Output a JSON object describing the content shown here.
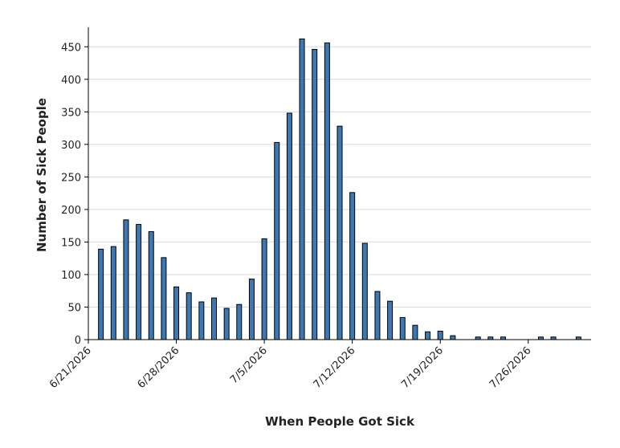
{
  "chart_data": {
    "type": "bar",
    "x_label": "When People Got Sick",
    "y_label": "Number of Sick People",
    "x": [
      "6/22/2026",
      "6/23/2026",
      "6/24/2026",
      "6/25/2026",
      "6/26/2026",
      "6/27/2026",
      "6/28/2026",
      "6/29/2026",
      "6/30/2026",
      "7/1/2026",
      "7/2/2026",
      "7/3/2026",
      "7/4/2026",
      "7/5/2026",
      "7/6/2026",
      "7/7/2026",
      "7/8/2026",
      "7/9/2026",
      "7/10/2026",
      "7/11/2026",
      "7/12/2026",
      "7/13/2026",
      "7/14/2026",
      "7/15/2026",
      "7/16/2026",
      "7/17/2026",
      "7/18/2026",
      "7/19/2026",
      "7/20/2026",
      "7/21/2026",
      "7/22/2026",
      "7/23/2026",
      "7/24/2026",
      "7/25/2026",
      "7/26/2026",
      "7/27/2026",
      "7/28/2026",
      "7/29/2026",
      "7/30/2026"
    ],
    "values": [
      139,
      143,
      184,
      177,
      166,
      126,
      81,
      72,
      58,
      64,
      48,
      54,
      93,
      155,
      303,
      348,
      462,
      446,
      456,
      328,
      226,
      148,
      74,
      59,
      34,
      22,
      12,
      13,
      6,
      0,
      4,
      4,
      4,
      0,
      0,
      4,
      4,
      0,
      4
    ],
    "color": "#3b78b4",
    "xlim": [
      "6/21/2026",
      "7/31/2026"
    ],
    "xticks": [
      "6/21/2026",
      "6/28/2026",
      "7/5/2026",
      "7/12/2026",
      "7/19/2026",
      "7/26/2026"
    ],
    "ylim": [
      0,
      475
    ],
    "yticks": [
      0,
      50,
      100,
      150,
      200,
      250,
      300,
      350,
      400,
      450
    ],
    "grid": true
  }
}
